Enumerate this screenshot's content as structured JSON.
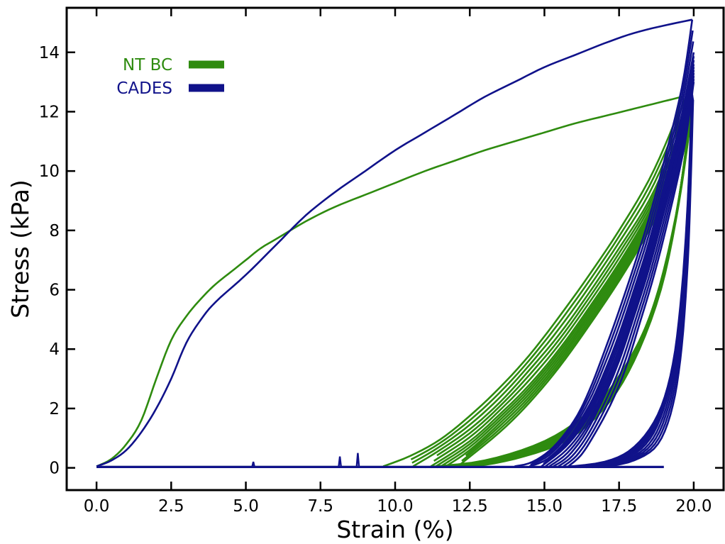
{
  "chart_data": {
    "type": "line",
    "xlabel": "Strain (%)",
    "ylabel": "Stress (kPa)",
    "xlim": [
      -1.0,
      21.0
    ],
    "ylim": [
      -0.75,
      15.5
    ],
    "xticks": [
      "0.0",
      "2.5",
      "5.0",
      "7.5",
      "10.0",
      "12.5",
      "15.0",
      "17.5",
      "20.0"
    ],
    "yticks": [
      "0",
      "2",
      "4",
      "6",
      "8",
      "10",
      "12",
      "14"
    ],
    "grid": false,
    "legend": {
      "placement": "top-left"
    },
    "series": [
      {
        "name": "NT BC",
        "color": "#2e8b0f",
        "loading": [
          [
            0,
            0.05
          ],
          [
            0.5,
            0.3
          ],
          [
            1.0,
            0.8
          ],
          [
            1.5,
            1.6
          ],
          [
            2.0,
            3.0
          ],
          [
            2.5,
            4.3
          ],
          [
            3.0,
            5.1
          ],
          [
            3.5,
            5.7
          ],
          [
            4.0,
            6.2
          ],
          [
            4.5,
            6.6
          ],
          [
            5.0,
            7.0
          ],
          [
            5.5,
            7.4
          ],
          [
            6.0,
            7.7
          ],
          [
            7.0,
            8.3
          ],
          [
            8.0,
            8.8
          ],
          [
            9.0,
            9.2
          ],
          [
            10.0,
            9.6
          ],
          [
            11.0,
            10.0
          ],
          [
            12.0,
            10.35
          ],
          [
            13.0,
            10.7
          ],
          [
            14.0,
            11.0
          ],
          [
            15.0,
            11.3
          ],
          [
            16.0,
            11.6
          ],
          [
            17.0,
            11.85
          ],
          [
            18.0,
            12.1
          ],
          [
            19.0,
            12.35
          ],
          [
            19.6,
            12.5
          ]
        ],
        "unloading_loops": [
          {
            "peak": 12.5,
            "zero_strain": 9.6,
            "pts": [
              [
                19.6,
                12.5
              ],
              [
                19.3,
                11.5
              ],
              [
                18.5,
                9.7
              ],
              [
                17.5,
                8.0
              ],
              [
                16.5,
                6.5
              ],
              [
                15.5,
                5.1
              ],
              [
                14.5,
                3.8
              ],
              [
                13.5,
                2.7
              ],
              [
                12.5,
                1.75
              ],
              [
                11.5,
                0.95
              ],
              [
                10.5,
                0.4
              ],
              [
                9.6,
                0.05
              ]
            ]
          },
          {
            "peak": 12.3,
            "zero_strain": 10.6,
            "pts": [
              [
                19.8,
                12.3
              ],
              [
                19.4,
                11.0
              ],
              [
                18.5,
                9.0
              ],
              [
                17.5,
                7.4
              ],
              [
                16.5,
                5.9
              ],
              [
                15.5,
                4.5
              ],
              [
                14.5,
                3.3
              ],
              [
                13.5,
                2.2
              ],
              [
                12.5,
                1.3
              ],
              [
                11.5,
                0.6
              ],
              [
                10.6,
                0.05
              ]
            ]
          },
          {
            "peak": 12.1,
            "zero_strain": 11.2,
            "pts": [
              [
                19.9,
                12.1
              ],
              [
                19.5,
                10.7
              ],
              [
                18.5,
                8.6
              ],
              [
                17.5,
                6.9
              ],
              [
                16.5,
                5.4
              ],
              [
                15.5,
                4.0
              ],
              [
                14.5,
                2.8
              ],
              [
                13.5,
                1.8
              ],
              [
                12.5,
                0.9
              ],
              [
                11.2,
                0.05
              ]
            ]
          },
          {
            "peak": 12.0,
            "zero_strain": 11.7,
            "pts": [
              [
                19.9,
                12.0
              ],
              [
                19.5,
                10.4
              ],
              [
                18.5,
                8.3
              ],
              [
                17.5,
                6.6
              ],
              [
                16.5,
                5.1
              ],
              [
                15.5,
                3.7
              ],
              [
                14.5,
                2.5
              ],
              [
                13.5,
                1.5
              ],
              [
                12.5,
                0.6
              ],
              [
                11.7,
                0.05
              ]
            ]
          },
          {
            "peak": 11.9,
            "zero_strain": 12.1,
            "pts": [
              [
                19.9,
                11.9
              ],
              [
                19.5,
                10.1
              ],
              [
                18.5,
                8.0
              ],
              [
                17.5,
                6.3
              ],
              [
                16.5,
                4.8
              ],
              [
                15.5,
                3.4
              ],
              [
                14.5,
                2.2
              ],
              [
                13.5,
                1.2
              ],
              [
                12.1,
                0.05
              ]
            ]
          }
        ],
        "reloading_loops": [
          {
            "pts": [
              [
                11.0,
                0.02
              ],
              [
                13.0,
                0.25
              ],
              [
                15.0,
                0.9
              ],
              [
                16.5,
                1.9
              ],
              [
                17.5,
                3.1
              ],
              [
                18.5,
                5.0
              ],
              [
                19.3,
                7.8
              ],
              [
                19.9,
                12.0
              ]
            ]
          },
          {
            "pts": [
              [
                11.8,
                0.02
              ],
              [
                13.5,
                0.3
              ],
              [
                15.3,
                0.9
              ],
              [
                16.8,
                2.0
              ],
              [
                17.8,
                3.4
              ],
              [
                18.7,
                5.6
              ],
              [
                19.4,
                8.5
              ],
              [
                19.9,
                11.8
              ]
            ]
          },
          {
            "pts": [
              [
                12.5,
                0.02
              ],
              [
                14.0,
                0.3
              ],
              [
                15.7,
                0.9
              ],
              [
                17.0,
                2.0
              ],
              [
                18.0,
                3.6
              ],
              [
                18.9,
                6.0
              ],
              [
                19.5,
                8.9
              ],
              [
                19.9,
                11.7
              ]
            ]
          }
        ]
      },
      {
        "name": "CADES",
        "color": "#10128a",
        "loading": [
          [
            0,
            0.05
          ],
          [
            0.5,
            0.25
          ],
          [
            1.0,
            0.6
          ],
          [
            1.5,
            1.2
          ],
          [
            2.0,
            2.0
          ],
          [
            2.5,
            3.0
          ],
          [
            3.0,
            4.2
          ],
          [
            3.5,
            5.0
          ],
          [
            4.0,
            5.6
          ],
          [
            5.0,
            6.5
          ],
          [
            6.0,
            7.5
          ],
          [
            7.0,
            8.5
          ],
          [
            8.0,
            9.3
          ],
          [
            9.0,
            10.0
          ],
          [
            10.0,
            10.7
          ],
          [
            11.0,
            11.3
          ],
          [
            12.0,
            11.9
          ],
          [
            13.0,
            12.5
          ],
          [
            14.0,
            13.0
          ],
          [
            15.0,
            13.5
          ],
          [
            16.0,
            13.9
          ],
          [
            17.0,
            14.3
          ],
          [
            18.0,
            14.65
          ],
          [
            19.0,
            14.9
          ],
          [
            19.95,
            15.1
          ]
        ],
        "baseline_spikes": [
          [
            5.25,
            0.2
          ],
          [
            8.15,
            0.38
          ],
          [
            8.75,
            0.5
          ]
        ],
        "unloading_loops": [
          {
            "peak": 15.1,
            "zero_strain": 14.0,
            "pts": [
              [
                19.95,
                15.1
              ],
              [
                19.6,
                12.8
              ],
              [
                19.0,
                10.3
              ],
              [
                18.5,
                8.4
              ],
              [
                18.0,
                6.8
              ],
              [
                17.5,
                5.3
              ],
              [
                17.0,
                3.9
              ],
              [
                16.5,
                2.6
              ],
              [
                16.0,
                1.6
              ],
              [
                15.3,
                0.7
              ],
              [
                14.6,
                0.2
              ],
              [
                14.0,
                0.05
              ]
            ]
          },
          {
            "peak": 14.0,
            "zero_strain": 14.5,
            "pts": [
              [
                20.0,
                14.0
              ],
              [
                19.6,
                11.9
              ],
              [
                19.0,
                9.5
              ],
              [
                18.5,
                7.6
              ],
              [
                18.0,
                6.0
              ],
              [
                17.5,
                4.5
              ],
              [
                17.0,
                3.2
              ],
              [
                16.5,
                2.1
              ],
              [
                15.8,
                1.0
              ],
              [
                15.1,
                0.3
              ],
              [
                14.5,
                0.05
              ]
            ]
          },
          {
            "peak": 13.6,
            "zero_strain": 14.9,
            "pts": [
              [
                20.0,
                13.6
              ],
              [
                19.6,
                11.4
              ],
              [
                19.0,
                9.0
              ],
              [
                18.5,
                7.1
              ],
              [
                18.0,
                5.5
              ],
              [
                17.5,
                4.0
              ],
              [
                17.0,
                2.8
              ],
              [
                16.4,
                1.6
              ],
              [
                15.7,
                0.7
              ],
              [
                14.9,
                0.05
              ]
            ]
          },
          {
            "peak": 13.3,
            "zero_strain": 15.3,
            "pts": [
              [
                20.0,
                13.3
              ],
              [
                19.6,
                11.0
              ],
              [
                19.0,
                8.6
              ],
              [
                18.5,
                6.7
              ],
              [
                18.0,
                5.1
              ],
              [
                17.5,
                3.6
              ],
              [
                17.0,
                2.4
              ],
              [
                16.4,
                1.2
              ],
              [
                15.8,
                0.4
              ],
              [
                15.3,
                0.05
              ]
            ]
          },
          {
            "peak": 13.0,
            "zero_strain": 15.8,
            "pts": [
              [
                20.0,
                13.0
              ],
              [
                19.7,
                10.9
              ],
              [
                19.2,
                8.6
              ],
              [
                18.7,
                6.6
              ],
              [
                18.2,
                4.9
              ],
              [
                17.7,
                3.3
              ],
              [
                17.2,
                2.1
              ],
              [
                16.6,
                1.0
              ],
              [
                16.2,
                0.4
              ],
              [
                15.8,
                0.05
              ]
            ]
          }
        ],
        "reloading_loops": [
          {
            "pts": [
              [
                15.5,
                0.02
              ],
              [
                17.0,
                0.2
              ],
              [
                18.0,
                0.7
              ],
              [
                18.8,
                1.8
              ],
              [
                19.3,
                3.5
              ],
              [
                19.6,
                6.0
              ],
              [
                19.8,
                9.0
              ],
              [
                19.95,
                12.8
              ]
            ]
          },
          {
            "pts": [
              [
                16.2,
                0.02
              ],
              [
                17.5,
                0.25
              ],
              [
                18.4,
                0.8
              ],
              [
                19.0,
                2.0
              ],
              [
                19.4,
                3.9
              ],
              [
                19.7,
                6.6
              ],
              [
                19.85,
                9.5
              ],
              [
                19.95,
                12.6
              ]
            ]
          },
          {
            "pts": [
              [
                17.0,
                0.02
              ],
              [
                18.0,
                0.25
              ],
              [
                18.8,
                0.8
              ],
              [
                19.3,
                2.1
              ],
              [
                19.6,
                4.1
              ],
              [
                19.8,
                6.9
              ],
              [
                19.9,
                9.6
              ],
              [
                19.98,
                12.4
              ]
            ]
          }
        ]
      }
    ]
  }
}
